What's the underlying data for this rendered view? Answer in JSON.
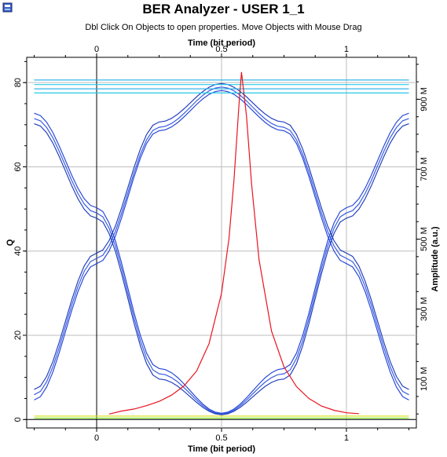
{
  "window": {
    "title": "BER Analyzer - USER 1_1",
    "hint": "Dbl Click On Objects to open properties.  Move Objects with Mouse Drag"
  },
  "icons": {
    "app": "analyzer-app-icon"
  },
  "colors": {
    "q_factor": "#e8141e",
    "eye_main": "#1f3fd6",
    "eye_hot": "#19c8e6",
    "eye_warm": "#7be21a",
    "eye_low": "#d8e21a"
  },
  "chart_data": {
    "type": "line",
    "title": "BER Analyzer - USER 1_1",
    "subtitle": "Dbl Click On Objects to open properties.  Move Objects with Mouse Drag",
    "xlabel": "Time (bit period)",
    "x2label": "Time (bit period)",
    "ylabel": "Q",
    "y2label": "Amplitude (a.u.)",
    "xlim": [
      -0.28,
      1.28
    ],
    "ylim": [
      -2,
      86
    ],
    "y2lim": [
      -40,
      1020
    ],
    "x_ticks": [
      0,
      0.5,
      1
    ],
    "x_tick_labels": [
      "0",
      "0.5",
      "1"
    ],
    "y_ticks": [
      0,
      20,
      40,
      60,
      80
    ],
    "y_tick_labels": [
      "0",
      "20",
      "40",
      "60",
      "80"
    ],
    "y2_ticks": [
      100,
      300,
      500,
      700,
      900
    ],
    "y2_tick_labels": [
      "100 M",
      "300 M",
      "500 M",
      "700 M",
      "900 M"
    ],
    "grid": true,
    "series": [
      {
        "role": "q-factor",
        "color": "#e8141e",
        "x": [
          0.05,
          0.1,
          0.15,
          0.2,
          0.25,
          0.3,
          0.35,
          0.4,
          0.45,
          0.5,
          0.53,
          0.55,
          0.57,
          0.58,
          0.6,
          0.62,
          0.65,
          0.7,
          0.75,
          0.8,
          0.85,
          0.9,
          0.95,
          1.0,
          1.05
        ],
        "y": [
          1.3,
          2.0,
          2.5,
          3.3,
          4.3,
          5.8,
          8.0,
          11.5,
          18.0,
          30.0,
          43.0,
          57.0,
          75.0,
          82.5,
          72.0,
          56.0,
          38.0,
          21.0,
          12.5,
          7.8,
          5.0,
          3.2,
          2.2,
          1.6,
          1.4
        ]
      }
    ],
    "eye_diagram": {
      "unit": "amplitude (a.u.)",
      "traces": [
        {
          "x": [
            -0.25,
            0.0,
            0.25,
            0.5,
            0.75,
            1.0,
            1.25
          ],
          "y": [
            860,
            590,
            130,
            2,
            130,
            590,
            860
          ]
        },
        {
          "x": [
            -0.25,
            0.0,
            0.25,
            0.5,
            0.75,
            1.0,
            1.25
          ],
          "y": [
            845,
            575,
            115,
            0,
            115,
            575,
            845
          ]
        },
        {
          "x": [
            -0.25,
            0.0,
            0.25,
            0.5,
            0.75,
            1.0,
            1.25
          ],
          "y": [
            830,
            560,
            100,
            -2,
            100,
            560,
            830
          ]
        },
        {
          "x": [
            -0.25,
            0.0,
            0.25,
            0.5,
            0.75,
            1.0,
            1.25
          ],
          "y": [
            40,
            430,
            810,
            925,
            810,
            430,
            40
          ]
        },
        {
          "x": [
            -0.25,
            0.0,
            0.25,
            0.5,
            0.75,
            1.0,
            1.25
          ],
          "y": [
            55,
            445,
            820,
            935,
            820,
            445,
            55
          ]
        },
        {
          "x": [
            -0.25,
            0.0,
            0.25,
            0.5,
            0.75,
            1.0,
            1.25
          ],
          "y": [
            70,
            460,
            835,
            945,
            835,
            460,
            70
          ]
        },
        {
          "x": [
            -0.25,
            1.25
          ],
          "y": [
            955,
            955
          ]
        },
        {
          "x": [
            -0.25,
            1.25
          ],
          "y": [
            942,
            942
          ]
        },
        {
          "x": [
            -0.25,
            1.25
          ],
          "y": [
            930,
            930
          ]
        },
        {
          "x": [
            -0.25,
            1.25
          ],
          "y": [
            918,
            918
          ]
        },
        {
          "x": [
            -0.25,
            1.25
          ],
          "y": [
            -6,
            -6
          ]
        },
        {
          "x": [
            -0.25,
            1.25
          ],
          "y": [
            -12,
            -12
          ]
        }
      ]
    }
  }
}
